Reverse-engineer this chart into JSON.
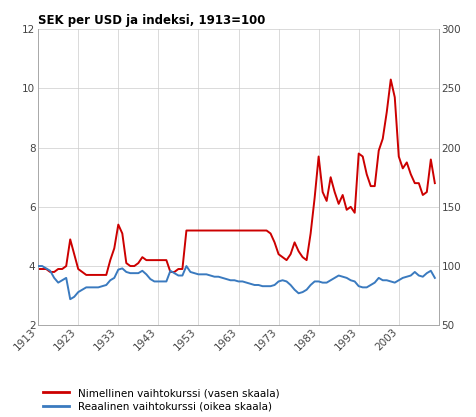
{
  "title": "SEK per USD ja indeksi, 1913=100",
  "left_ylim": [
    2,
    12
  ],
  "right_ylim": [
    50,
    300
  ],
  "left_yticks": [
    2,
    4,
    6,
    8,
    10,
    12
  ],
  "right_yticks": [
    50,
    100,
    150,
    200,
    250,
    300
  ],
  "xticks": [
    1913,
    1923,
    1933,
    1943,
    1953,
    1963,
    1973,
    1983,
    1993,
    2003
  ],
  "xmin": 1913,
  "xmax": 2013,
  "nominal_color": "#cc0000",
  "real_color": "#3a7abf",
  "legend_nominal": "Nimellinen vaihtokurssi (vasen skaala)",
  "legend_real": "Reaalinen vaihtokurssi (oikea skaala)",
  "nominal_years": [
    1913,
    1914,
    1915,
    1916,
    1917,
    1918,
    1919,
    1920,
    1921,
    1922,
    1923,
    1924,
    1925,
    1926,
    1927,
    1928,
    1929,
    1930,
    1931,
    1932,
    1933,
    1934,
    1935,
    1936,
    1937,
    1938,
    1939,
    1940,
    1941,
    1942,
    1943,
    1944,
    1945,
    1946,
    1947,
    1948,
    1949,
    1950,
    1951,
    1952,
    1953,
    1954,
    1955,
    1956,
    1957,
    1958,
    1959,
    1960,
    1961,
    1962,
    1963,
    1964,
    1965,
    1966,
    1967,
    1968,
    1969,
    1970,
    1971,
    1972,
    1973,
    1974,
    1975,
    1976,
    1977,
    1978,
    1979,
    1980,
    1981,
    1982,
    1983,
    1984,
    1985,
    1986,
    1987,
    1988,
    1989,
    1990,
    1991,
    1992,
    1993,
    1994,
    1995,
    1996,
    1997,
    1998,
    1999,
    2000,
    2001,
    2002,
    2003,
    2004,
    2005,
    2006,
    2007,
    2008,
    2009,
    2010,
    2011,
    2012
  ],
  "nominal_values": [
    3.9,
    3.9,
    3.9,
    3.8,
    3.8,
    3.9,
    3.9,
    4.0,
    4.9,
    4.4,
    3.9,
    3.8,
    3.7,
    3.7,
    3.7,
    3.7,
    3.7,
    3.7,
    4.2,
    4.6,
    5.4,
    5.1,
    4.1,
    4.0,
    4.0,
    4.1,
    4.3,
    4.2,
    4.2,
    4.2,
    4.2,
    4.2,
    4.2,
    3.8,
    3.8,
    3.9,
    3.9,
    5.2,
    5.2,
    5.2,
    5.2,
    5.2,
    5.2,
    5.2,
    5.2,
    5.2,
    5.2,
    5.2,
    5.2,
    5.2,
    5.2,
    5.2,
    5.2,
    5.2,
    5.2,
    5.2,
    5.2,
    5.2,
    5.1,
    4.8,
    4.4,
    4.3,
    4.2,
    4.4,
    4.8,
    4.5,
    4.3,
    4.2,
    5.1,
    6.3,
    7.7,
    6.5,
    6.2,
    7.0,
    6.5,
    6.1,
    6.4,
    5.9,
    6.0,
    5.8,
    7.8,
    7.7,
    7.1,
    6.7,
    6.7,
    7.9,
    8.3,
    9.2,
    10.3,
    9.7,
    7.7,
    7.3,
    7.5,
    7.1,
    6.8,
    6.8,
    6.4,
    6.5,
    7.6,
    6.8
  ],
  "real_years": [
    1913,
    1914,
    1915,
    1916,
    1917,
    1918,
    1919,
    1920,
    1921,
    1922,
    1923,
    1924,
    1925,
    1926,
    1927,
    1928,
    1929,
    1930,
    1931,
    1932,
    1933,
    1934,
    1935,
    1936,
    1937,
    1938,
    1939,
    1940,
    1941,
    1942,
    1943,
    1944,
    1945,
    1946,
    1947,
    1948,
    1949,
    1950,
    1951,
    1952,
    1953,
    1954,
    1955,
    1956,
    1957,
    1958,
    1959,
    1960,
    1961,
    1962,
    1963,
    1964,
    1965,
    1966,
    1967,
    1968,
    1969,
    1970,
    1971,
    1972,
    1973,
    1974,
    1975,
    1976,
    1977,
    1978,
    1979,
    1980,
    1981,
    1982,
    1983,
    1984,
    1985,
    1986,
    1987,
    1988,
    1989,
    1990,
    1991,
    1992,
    1993,
    1994,
    1995,
    1996,
    1997,
    1998,
    1999,
    2000,
    2001,
    2002,
    2003,
    2004,
    2005,
    2006,
    2007,
    2008,
    2009,
    2010,
    2011,
    2012
  ],
  "real_values": [
    100,
    100,
    98,
    96,
    90,
    86,
    88,
    90,
    72,
    74,
    78,
    80,
    82,
    82,
    82,
    82,
    83,
    84,
    88,
    90,
    97,
    98,
    95,
    94,
    94,
    94,
    96,
    93,
    89,
    87,
    87,
    87,
    87,
    96,
    94,
    92,
    92,
    100,
    95,
    94,
    93,
    93,
    93,
    92,
    91,
    91,
    90,
    89,
    88,
    88,
    87,
    87,
    86,
    85,
    84,
    84,
    83,
    83,
    83,
    84,
    87,
    88,
    87,
    84,
    80,
    77,
    78,
    80,
    84,
    87,
    87,
    86,
    86,
    88,
    90,
    92,
    91,
    90,
    88,
    87,
    83,
    82,
    82,
    84,
    86,
    90,
    88,
    88,
    87,
    86,
    88,
    90,
    91,
    92,
    95,
    92,
    91,
    94,
    96,
    90
  ],
  "background_color": "#ffffff",
  "grid_color": "#cccccc",
  "spine_color": "#aaaaaa",
  "tick_label_color": "#444444",
  "title_fontsize": 8.5,
  "tick_fontsize": 7.5,
  "legend_fontsize": 7.5,
  "line_width": 1.4
}
